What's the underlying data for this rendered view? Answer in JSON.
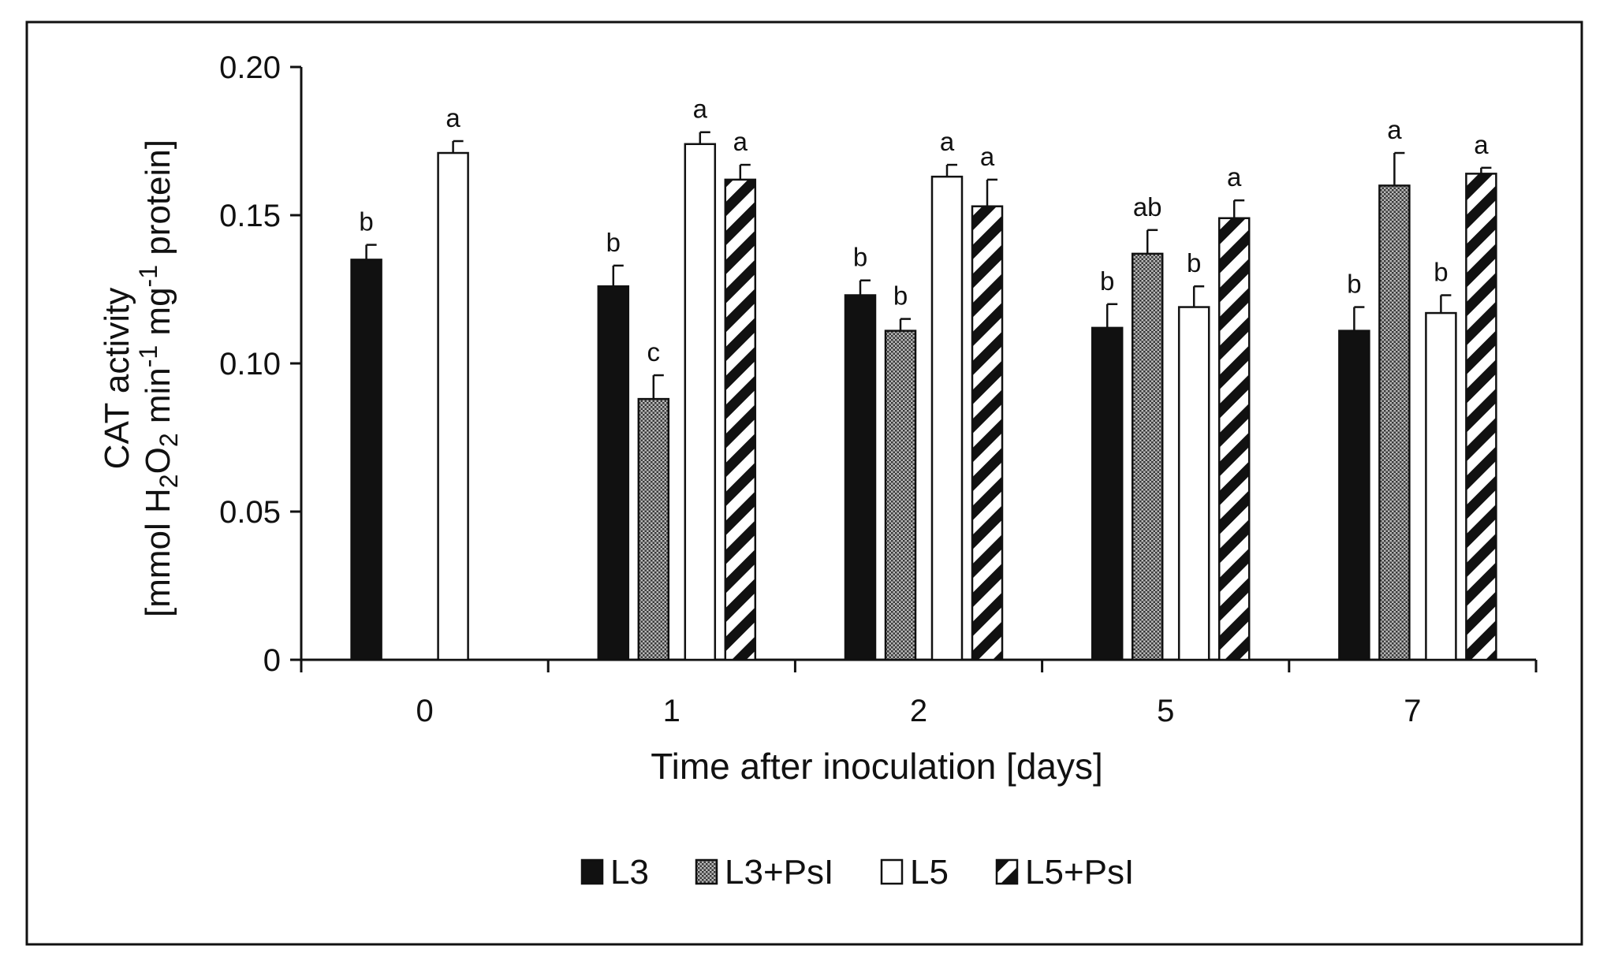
{
  "chart_data": {
    "type": "bar",
    "categories": [
      "0",
      "1",
      "2",
      "5",
      "7"
    ],
    "xlabel": "Time after inoculation [days]",
    "ylabel_line1": "CAT activity",
    "ylabel_line2_parts": [
      "[mmol H",
      "2",
      "O",
      "2",
      " min",
      "-1",
      " mg",
      "-1",
      " protein]"
    ],
    "ylim": [
      0,
      0.2
    ],
    "yticks": [
      "0",
      "0.05",
      "0.10",
      "0.15",
      "0.20"
    ],
    "ytick_values": [
      0,
      0.05,
      0.1,
      0.15,
      0.2
    ],
    "legend_position": "bottom",
    "series": [
      {
        "name": "L3",
        "pattern": "solid",
        "values": [
          0.135,
          0.126,
          0.123,
          0.112,
          0.111
        ],
        "errors": [
          0.005,
          0.007,
          0.005,
          0.008,
          0.008
        ],
        "labels": [
          "b",
          "b",
          "b",
          "b",
          "b"
        ]
      },
      {
        "name": "L3+PsI",
        "pattern": "dots",
        "values": [
          null,
          0.088,
          0.111,
          0.137,
          0.16
        ],
        "errors": [
          null,
          0.008,
          0.004,
          0.008,
          0.011
        ],
        "labels": [
          null,
          "c",
          "b",
          "ab",
          "a"
        ]
      },
      {
        "name": "L5",
        "pattern": "white",
        "values": [
          0.171,
          0.174,
          0.163,
          0.119,
          0.117
        ],
        "errors": [
          0.004,
          0.004,
          0.004,
          0.007,
          0.006
        ],
        "labels": [
          "a",
          "a",
          "a",
          "b",
          "b"
        ]
      },
      {
        "name": "L5+PsI",
        "pattern": "stripes",
        "values": [
          null,
          0.162,
          0.153,
          0.149,
          0.164
        ],
        "errors": [
          null,
          0.005,
          0.009,
          0.006,
          0.002
        ],
        "labels": [
          null,
          "a",
          "a",
          "a",
          "a"
        ]
      }
    ]
  }
}
